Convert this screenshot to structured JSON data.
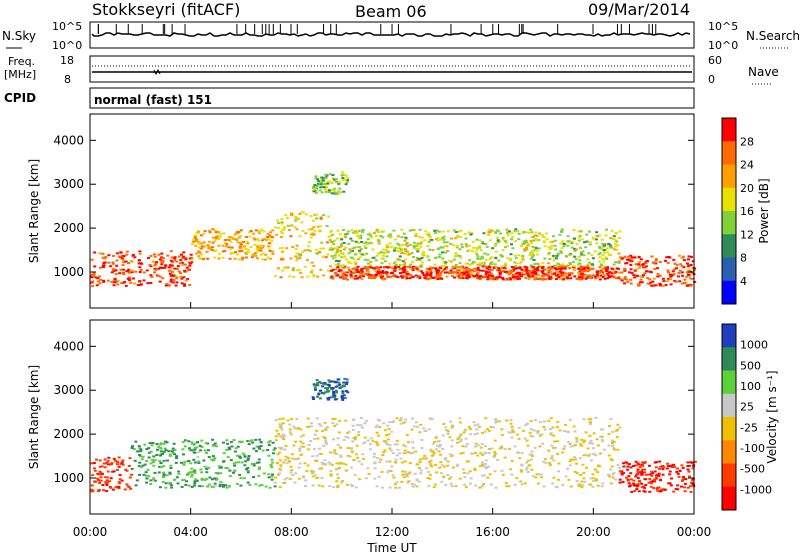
{
  "header": {
    "station": "Stokkseyri (fitACF)",
    "beam": "Beam 06",
    "date": "09/Mar/2014"
  },
  "noise_panel": {
    "left_label": "N.Sky",
    "left_ticks": [
      "10^5",
      "10^0"
    ],
    "right_label": "N.Search",
    "right_ticks": [
      "10^5",
      "10^0"
    ]
  },
  "freq_panel": {
    "left_label_line1": "Freq.",
    "left_label_line2": "[MHz]",
    "left_ticks": [
      "18",
      "8"
    ],
    "right_label": "Nave",
    "right_ticks": [
      "60",
      "0"
    ]
  },
  "cpid": {
    "label": "CPID",
    "mode": "normal (fast) 151"
  },
  "chart_data": [
    {
      "type": "heatmap",
      "title": "",
      "quantity": "Power",
      "xlabel": "Time UT",
      "ylabel": "Slant Range [km]",
      "x_ticks": [
        "00:00",
        "04:00",
        "08:00",
        "12:00",
        "16:00",
        "20:00",
        "00:00"
      ],
      "xlim_hours": [
        0,
        24
      ],
      "y_ticks": [
        1000,
        2000,
        3000,
        4000
      ],
      "ylim_km": [
        180,
        4600
      ],
      "colorbar": {
        "label": "Power [dB]",
        "ticks": [
          "28",
          "24",
          "20",
          "16",
          "12",
          "8",
          "4"
        ],
        "colors": [
          "#ff0000",
          "#ff6a00",
          "#ffa000",
          "#e8e000",
          "#7fd23a",
          "#2e8b57",
          "#2a5fb0",
          "#0000ff"
        ]
      },
      "echo_regions": [
        {
          "t_start": 0.0,
          "t_end": 4.0,
          "r_low": 700,
          "r_high": 1500,
          "level_db": 26
        },
        {
          "t_start": 4.0,
          "t_end": 7.3,
          "r_low": 1300,
          "r_high": 2000,
          "level_db": 20
        },
        {
          "t_start": 7.3,
          "t_end": 9.5,
          "r_low": 900,
          "r_high": 2400,
          "level_db": 18
        },
        {
          "t_start": 9.5,
          "t_end": 21.0,
          "r_low": 850,
          "r_high": 1150,
          "level_db": 26
        },
        {
          "t_start": 9.5,
          "t_end": 21.0,
          "r_low": 1150,
          "r_high": 2000,
          "level_db": 14
        },
        {
          "t_start": 21.0,
          "t_end": 24.0,
          "r_low": 700,
          "r_high": 1400,
          "level_db": 26
        },
        {
          "t_start": 8.8,
          "t_end": 10.2,
          "r_low": 2800,
          "r_high": 3300,
          "level_db": 12
        }
      ]
    },
    {
      "type": "heatmap",
      "title": "",
      "quantity": "Velocity",
      "xlabel": "Time UT",
      "ylabel": "Slant Range [km]",
      "x_ticks": [
        "00:00",
        "04:00",
        "08:00",
        "12:00",
        "16:00",
        "20:00",
        "00:00"
      ],
      "xlim_hours": [
        0,
        24
      ],
      "y_ticks": [
        1000,
        2000,
        3000,
        4000
      ],
      "ylim_km": [
        180,
        4600
      ],
      "colorbar": {
        "label": "Velocity [m s⁻¹]",
        "ticks": [
          "1000",
          "500",
          "100",
          "25",
          "-25",
          "-100",
          "-500",
          "-1000"
        ],
        "colors": [
          "#1f3fbf",
          "#2e8b57",
          "#5bd13a",
          "#c8c8c8",
          "#f0c000",
          "#ff8800",
          "#ff3a00",
          "#ff0000"
        ]
      },
      "echo_regions": [
        {
          "t_start": 0.0,
          "t_end": 1.6,
          "r_low": 700,
          "r_high": 1500,
          "velocity": -600
        },
        {
          "t_start": 1.6,
          "t_end": 7.3,
          "r_low": 800,
          "r_high": 1900,
          "velocity": 300
        },
        {
          "t_start": 7.3,
          "t_end": 21.0,
          "r_low": 800,
          "r_high": 2400,
          "velocity": 0
        },
        {
          "t_start": 21.0,
          "t_end": 24.0,
          "r_low": 700,
          "r_high": 1400,
          "velocity": -800
        },
        {
          "t_start": 8.8,
          "t_end": 10.2,
          "r_low": 2800,
          "r_high": 3300,
          "velocity": 800
        }
      ]
    }
  ],
  "colors": {
    "frame": "#000000",
    "scatter_grey": "#c8c8c8"
  }
}
